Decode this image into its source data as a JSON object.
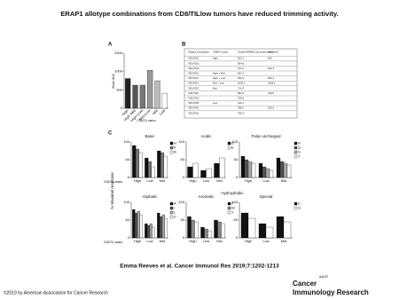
{
  "title": "ERAP1 allotype combinations from CD8/TILlow tumors have reduced trimming activity.",
  "citation": "Emma Reeves et al. Cancer Immunol Res 2019;7:1202-1213",
  "copyright": "©2019 by American Association for Cancer Research",
  "logo": {
    "org": "AACR",
    "journal_line1": "Cancer",
    "journal_line2": "Immunology Research"
  },
  "panels": [
    "A",
    "B",
    "C"
  ],
  "c_group_label": "Hydrophobic",
  "c_y_label": "% Maximal response",
  "table": {
    "header": [
      "Allotype combination",
      "CD8/TIL status",
      "Overall SIINFEKL generation (AUC)",
      "Mean AUC"
    ],
    "rows": [
      [
        "*001/*001",
        "High",
        "813.1",
        "813"
      ],
      [
        "*001/*002",
        "",
        "554.8",
        ""
      ],
      [
        "*001/*016",
        "",
        "673.1",
        "630.3"
      ],
      [
        "*001/*011",
        "High + Mid",
        "661.3",
        ""
      ],
      [
        "*001/*017",
        "High + Low",
        "630.3",
        "630.3"
      ],
      [
        "*001/*011",
        "Mid + Low",
        "1036.1",
        "1036.1"
      ],
      [
        "*001/*007",
        "Mid",
        "714.3",
        ""
      ],
      [
        "*011/*016",
        "",
        "802.5",
        "748.8"
      ],
      [
        "*011/*016",
        "",
        "729.5",
        ""
      ],
      [
        "*001/*005",
        "Low",
        "415.1",
        ""
      ],
      [
        "*001/*001",
        "",
        "338.1",
        "410.5"
      ],
      [
        "*001/*001",
        "",
        "478.3",
        ""
      ]
    ]
  },
  "chart_data": [
    {
      "type": "bar",
      "y_label": "Mean AUC",
      "x_label": "CD8/TIL status",
      "categories": [
        "High",
        "High+Mid",
        "High+Low",
        "Mid+Low",
        "Mid",
        "Low"
      ],
      "values": [
        810,
        630,
        630,
        1036,
        750,
        410
      ],
      "colors": [
        "#222",
        "#555",
        "#777",
        "#999",
        "#bbb",
        "#fff"
      ],
      "ylim": [
        0,
        1500
      ],
      "yticks": [
        0,
        500,
        1000,
        1500
      ]
    },
    {
      "type": "grouped_bar",
      "title": "Basic",
      "x_label": "CD8/TIL status",
      "categories": [
        "High",
        "Low",
        "Mid"
      ],
      "ylim": [
        0,
        100
      ],
      "yticks": [
        0,
        50,
        100
      ],
      "series": [
        {
          "name": "H",
          "color": "#111",
          "values": [
            90,
            55,
            75
          ]
        },
        {
          "name": "K",
          "color": "#777",
          "values": [
            80,
            45,
            70
          ]
        },
        {
          "name": "R",
          "color": "#fff",
          "values": [
            70,
            30,
            60
          ]
        }
      ]
    },
    {
      "type": "grouped_bar",
      "title": "Acidic",
      "categories": [
        "High",
        "Low",
        "Mid"
      ],
      "ylim": [
        0,
        100
      ],
      "yticks": [
        0,
        50,
        100
      ],
      "series": [
        {
          "name": "D",
          "color": "#111",
          "values": [
            30,
            20,
            40
          ]
        },
        {
          "name": "E",
          "color": "#fff",
          "values": [
            40,
            25,
            55
          ]
        }
      ]
    },
    {
      "type": "grouped_bar",
      "title": "Polar uncharged",
      "categories": [
        "High",
        "Low",
        "Mid"
      ],
      "ylim": [
        0,
        100
      ],
      "yticks": [
        0,
        50,
        100
      ],
      "series": [
        {
          "name": "N",
          "color": "#111",
          "values": [
            60,
            40,
            55
          ]
        },
        {
          "name": "Q",
          "color": "#555",
          "values": [
            50,
            30,
            45
          ]
        },
        {
          "name": "S",
          "color": "#aaa",
          "values": [
            45,
            25,
            40
          ]
        },
        {
          "name": "T",
          "color": "#fff",
          "values": [
            40,
            20,
            35
          ]
        }
      ]
    },
    {
      "type": "grouped_bar",
      "title": "Aliphatic",
      "x_label": "CD8/TIL status",
      "categories": [
        "High",
        "Low",
        "Mid"
      ],
      "ylim": [
        0,
        100
      ],
      "yticks": [
        0,
        50,
        100
      ],
      "series": [
        {
          "name": "A",
          "color": "#111",
          "values": [
            80,
            40,
            70
          ]
        },
        {
          "name": "I",
          "color": "#555",
          "values": [
            70,
            35,
            60
          ]
        },
        {
          "name": "L",
          "color": "#aaa",
          "values": [
            75,
            40,
            65
          ]
        },
        {
          "name": "V",
          "color": "#fff",
          "values": [
            65,
            30,
            55
          ]
        }
      ]
    },
    {
      "type": "grouped_bar",
      "title": "Aromatic",
      "categories": [
        "High",
        "Low",
        "Mid"
      ],
      "ylim": [
        0,
        100
      ],
      "yticks": [
        0,
        50,
        100
      ],
      "series": [
        {
          "name": "F",
          "color": "#111",
          "values": [
            60,
            30,
            50
          ]
        },
        {
          "name": "W",
          "color": "#888",
          "values": [
            50,
            25,
            45
          ]
        },
        {
          "name": "Y",
          "color": "#fff",
          "values": [
            45,
            20,
            40
          ]
        }
      ]
    },
    {
      "type": "grouped_bar",
      "title": "Special",
      "categories": [
        "High",
        "Low",
        "Mid"
      ],
      "ylim": [
        0,
        100
      ],
      "yticks": [
        0,
        50,
        100
      ],
      "series": [
        {
          "name": "C",
          "color": "#111",
          "values": [
            70,
            40,
            60
          ]
        },
        {
          "name": "G",
          "color": "#fff",
          "values": [
            55,
            30,
            45
          ]
        }
      ]
    }
  ]
}
